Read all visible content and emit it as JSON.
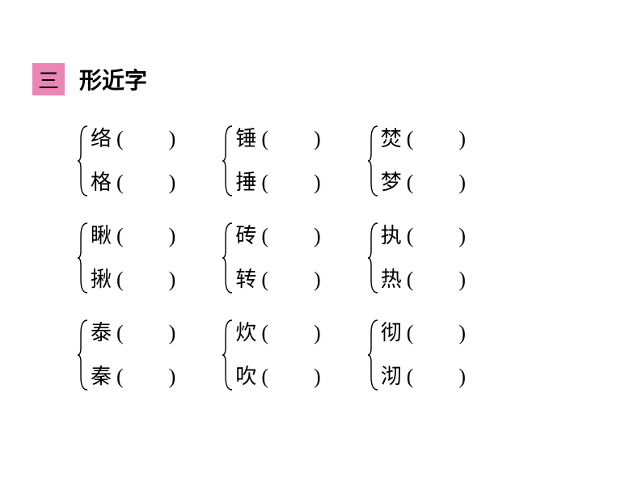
{
  "header": {
    "number": "三",
    "title": "形近字",
    "number_box_bg": "#e986b3",
    "number_box_color": "#000000",
    "title_color": "#000000"
  },
  "layout": {
    "text_color": "#000000",
    "font_size_main": 26,
    "brace_stroke": "#000000",
    "brace_stroke_width": 1.4
  },
  "rows": [
    {
      "groups": [
        {
          "chars": [
            "络",
            "格"
          ]
        },
        {
          "chars": [
            "锤",
            "捶"
          ]
        },
        {
          "chars": [
            "焚",
            "梦"
          ]
        }
      ]
    },
    {
      "groups": [
        {
          "chars": [
            "瞅",
            "揪"
          ]
        },
        {
          "chars": [
            "砖",
            "转"
          ]
        },
        {
          "chars": [
            "执",
            "热"
          ]
        }
      ]
    },
    {
      "groups": [
        {
          "chars": [
            "泰",
            "秦"
          ]
        },
        {
          "chars": [
            "炊",
            "吹"
          ]
        },
        {
          "chars": [
            "彻",
            "沏"
          ]
        }
      ]
    }
  ],
  "paren": {
    "open": "(",
    "close": ")"
  }
}
